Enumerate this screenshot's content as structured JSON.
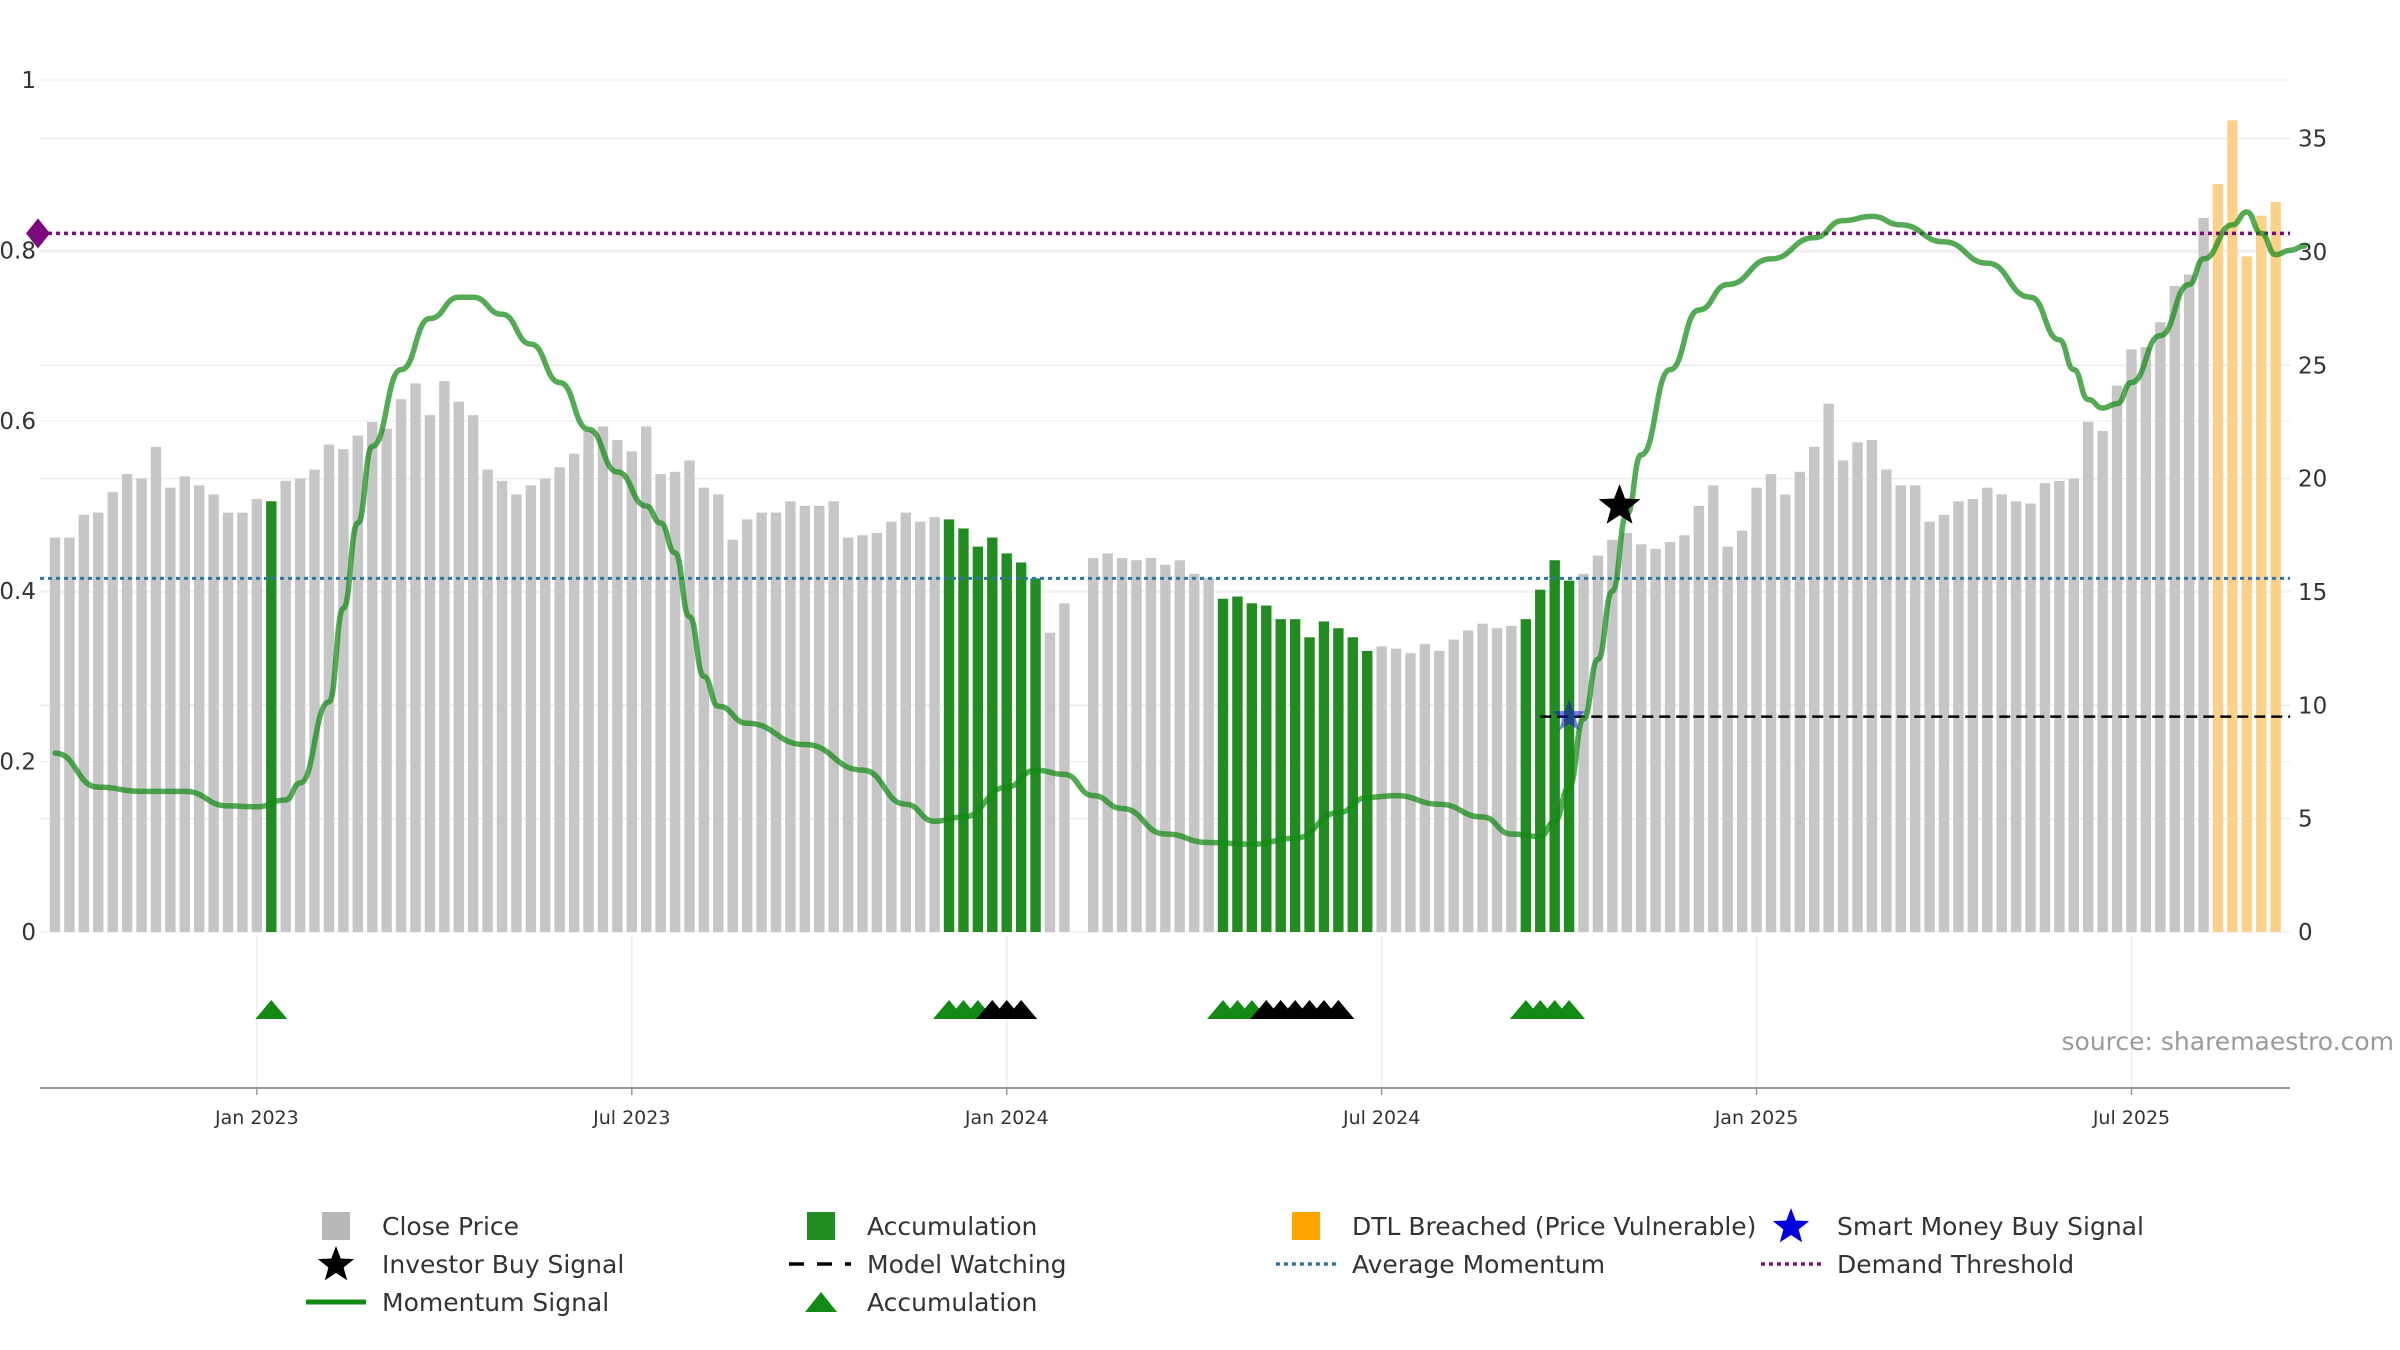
{
  "source_note": "source: sharemaestro.com",
  "colors": {
    "close_price": "#c6c6c6",
    "accumulation": "#228b22",
    "dtl": "#fdd18a",
    "momentum": "#138a13",
    "avg_momentum": "#2f76a8",
    "demand": "#7b0a7b",
    "investor_star": "#000000",
    "smart_star": "#1515cc",
    "model_watching": "#000000"
  },
  "legend": [
    {
      "symbol": "square",
      "color": "#b8b8b8",
      "label": "Close Price"
    },
    {
      "symbol": "square",
      "color": "#228b22",
      "label": "Accumulation"
    },
    {
      "symbol": "square",
      "color": "#ffa500",
      "label": "DTL Breached (Price Vulnerable)"
    },
    {
      "symbol": "star",
      "color": "#0000dd",
      "label": "Smart Money Buy Signal"
    },
    {
      "symbol": "star",
      "color": "#000000",
      "label": "Investor Buy Signal"
    },
    {
      "symbol": "dash",
      "color": "#000000",
      "label": "Model Watching"
    },
    {
      "symbol": "dotted",
      "color": "#2f76a8",
      "label": "Average Momentum"
    },
    {
      "symbol": "dotted",
      "color": "#7b0a7b",
      "label": "Demand Threshold"
    },
    {
      "symbol": "line",
      "color": "#138a13",
      "label": "Momentum Signal"
    },
    {
      "symbol": "triangle",
      "color": "#138a13",
      "label": "Accumulation"
    }
  ],
  "chart_data": {
    "type": "bar",
    "title": "",
    "xlabel": "",
    "ylabel_left": "",
    "ylabel_right": "",
    "x_ticks": [
      "Jan 2023",
      "Jul 2023",
      "Jan 2024",
      "Jul 2024",
      "Jan 2025",
      "Jul 2025"
    ],
    "x_tick_weeks": [
      14,
      40,
      66,
      92,
      118,
      144
    ],
    "y_left": {
      "ticks": [
        "0",
        "0.2",
        "0.4",
        "0.6",
        "0.8",
        "1"
      ],
      "range": [
        0,
        1
      ]
    },
    "y_right": {
      "ticks": [
        "0",
        "5",
        "10",
        "15",
        "20",
        "25",
        "30",
        "35"
      ],
      "range": [
        0,
        37.5
      ]
    },
    "week_start": "2022-09-26",
    "close_price": [
      17.4,
      17.4,
      18.4,
      18.5,
      19.4,
      20.2,
      20.0,
      21.4,
      19.6,
      20.1,
      19.7,
      19.3,
      18.5,
      18.5,
      19.1,
      19.0,
      19.9,
      20.0,
      20.4,
      21.5,
      21.3,
      21.9,
      22.5,
      22.2,
      23.5,
      24.2,
      22.8,
      24.3,
      23.4,
      22.8,
      20.4,
      19.9,
      19.3,
      19.7,
      20.0,
      20.5,
      21.1,
      22.1,
      22.3,
      21.7,
      21.2,
      22.3,
      20.2,
      20.3,
      20.8,
      19.6,
      19.3,
      17.3,
      18.2,
      18.5,
      18.5,
      19.0,
      18.8,
      18.8,
      19.0,
      17.4,
      17.5,
      17.6,
      18.1,
      18.5,
      18.1,
      18.3,
      18.2,
      17.8,
      17.0,
      17.4,
      16.7,
      16.3,
      15.6,
      13.2,
      14.5,
      0,
      16.5,
      16.7,
      16.5,
      16.4,
      16.5,
      16.2,
      16.4,
      15.8,
      15.6,
      14.7,
      14.8,
      14.5,
      14.4,
      13.8,
      13.8,
      13.0,
      13.7,
      13.4,
      13.0,
      12.4,
      12.6,
      12.5,
      12.3,
      12.7,
      12.4,
      12.9,
      13.3,
      13.6,
      13.4,
      13.5,
      13.8,
      15.1,
      16.4,
      15.5,
      15.8,
      16.6,
      17.3,
      17.6,
      17.1,
      16.9,
      17.2,
      17.5,
      18.8,
      19.7,
      17.0,
      17.7,
      19.6,
      20.2,
      19.3,
      20.3,
      21.4,
      23.3,
      20.8,
      21.6,
      21.7,
      20.4,
      19.7,
      19.7,
      18.1,
      18.4,
      19.0,
      19.1,
      19.6,
      19.3,
      19.0,
      18.9,
      19.8,
      19.9,
      20.0,
      22.5,
      22.1,
      24.1,
      25.7,
      25.8,
      26.9,
      28.5,
      29.0,
      31.5,
      33.0,
      35.8,
      29.8,
      31.6,
      32.2
    ],
    "accumulation_weeks": [
      15,
      62,
      63,
      64,
      65,
      66,
      67,
      68,
      81,
      82,
      83,
      84,
      85,
      86,
      87,
      88,
      89,
      90,
      91,
      102,
      103,
      104,
      105
    ],
    "dtl_weeks": [
      150,
      151,
      152,
      153,
      154,
      155
    ],
    "momentum": [
      [
        0,
        0.21
      ],
      [
        3,
        0.17
      ],
      [
        6,
        0.165
      ],
      [
        9,
        0.165
      ],
      [
        12,
        0.148
      ],
      [
        14,
        0.147
      ],
      [
        16,
        0.155
      ],
      [
        17,
        0.175
      ],
      [
        19,
        0.27
      ],
      [
        20,
        0.38
      ],
      [
        21,
        0.48
      ],
      [
        22,
        0.57
      ],
      [
        24,
        0.66
      ],
      [
        26,
        0.72
      ],
      [
        28,
        0.745
      ],
      [
        29,
        0.745
      ],
      [
        31,
        0.725
      ],
      [
        33,
        0.69
      ],
      [
        35,
        0.645
      ],
      [
        37,
        0.59
      ],
      [
        39,
        0.54
      ],
      [
        41,
        0.5
      ],
      [
        42,
        0.48
      ],
      [
        43,
        0.445
      ],
      [
        44,
        0.37
      ],
      [
        45,
        0.3
      ],
      [
        46,
        0.265
      ],
      [
        48,
        0.245
      ],
      [
        52,
        0.22
      ],
      [
        56,
        0.19
      ],
      [
        59,
        0.15
      ],
      [
        61,
        0.13
      ],
      [
        63,
        0.135
      ],
      [
        66,
        0.17
      ],
      [
        68,
        0.19
      ],
      [
        70,
        0.185
      ],
      [
        72,
        0.16
      ],
      [
        74,
        0.145
      ],
      [
        77,
        0.115
      ],
      [
        80,
        0.105
      ],
      [
        83,
        0.103
      ],
      [
        86,
        0.11
      ],
      [
        89,
        0.14
      ],
      [
        91,
        0.158
      ],
      [
        93,
        0.16
      ],
      [
        96,
        0.15
      ],
      [
        99,
        0.135
      ],
      [
        101,
        0.115
      ],
      [
        103,
        0.112
      ],
      [
        104,
        0.13
      ],
      [
        105,
        0.17
      ],
      [
        106,
        0.25
      ],
      [
        107,
        0.32
      ],
      [
        108,
        0.4
      ],
      [
        109,
        0.49
      ],
      [
        110,
        0.56
      ],
      [
        112,
        0.66
      ],
      [
        114,
        0.73
      ],
      [
        116,
        0.76
      ],
      [
        119,
        0.79
      ],
      [
        122,
        0.815
      ],
      [
        124,
        0.835
      ],
      [
        126,
        0.84
      ],
      [
        128,
        0.83
      ],
      [
        131,
        0.81
      ],
      [
        134,
        0.785
      ],
      [
        137,
        0.745
      ],
      [
        139,
        0.695
      ],
      [
        140,
        0.66
      ],
      [
        141,
        0.625
      ],
      [
        142,
        0.615
      ],
      [
        143,
        0.62
      ],
      [
        144,
        0.645
      ],
      [
        146,
        0.7
      ],
      [
        148,
        0.76
      ],
      [
        149,
        0.79
      ],
      [
        151,
        0.83
      ],
      [
        152,
        0.845
      ],
      [
        153,
        0.82
      ],
      [
        154,
        0.795
      ],
      [
        155,
        0.8
      ],
      [
        156,
        0.805
      ]
    ],
    "average_momentum": 0.415,
    "demand_threshold": 0.82,
    "investor_buy_signal": {
      "week": 108.5,
      "value": 0.5
    },
    "smart_money_buy_signal": {
      "week": 105,
      "price": 9.5
    },
    "model_watching": {
      "start_week": 103,
      "end_week": 155,
      "price": 9.5
    },
    "triangles": [
      {
        "week": 15,
        "color": "green"
      },
      {
        "week": 62,
        "color": "green"
      },
      {
        "week": 63,
        "color": "green"
      },
      {
        "week": 64,
        "color": "green"
      },
      {
        "week": 65,
        "color": "black"
      },
      {
        "week": 66,
        "color": "black"
      },
      {
        "week": 67,
        "color": "black"
      },
      {
        "week": 81,
        "color": "green"
      },
      {
        "week": 82,
        "color": "green"
      },
      {
        "week": 83,
        "color": "green"
      },
      {
        "week": 84,
        "color": "black"
      },
      {
        "week": 85,
        "color": "black"
      },
      {
        "week": 86,
        "color": "black"
      },
      {
        "week": 87,
        "color": "black"
      },
      {
        "week": 88,
        "color": "black"
      },
      {
        "week": 89,
        "color": "black"
      },
      {
        "week": 102,
        "color": "green"
      },
      {
        "week": 103,
        "color": "green"
      },
      {
        "week": 104,
        "color": "green"
      },
      {
        "week": 105,
        "color": "green"
      }
    ]
  }
}
